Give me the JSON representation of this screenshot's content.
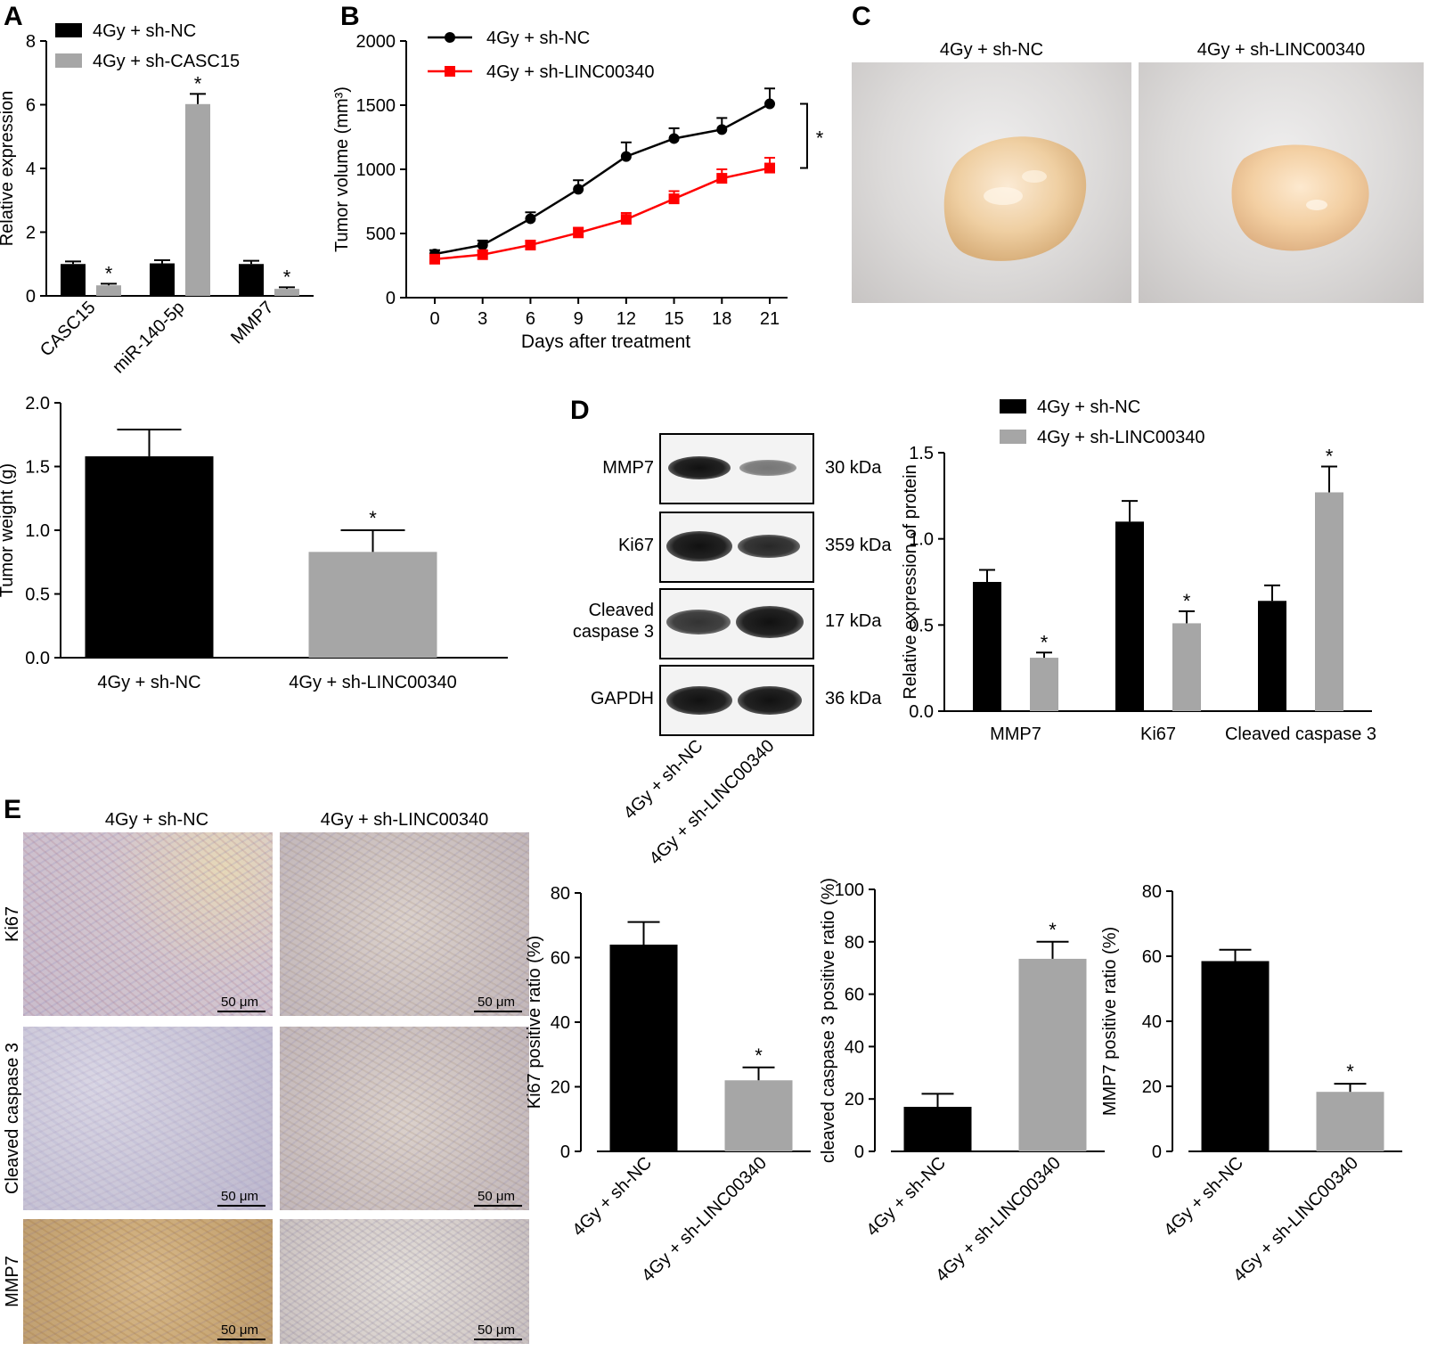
{
  "panel_letters": [
    "A",
    "B",
    "C",
    "D",
    "E"
  ],
  "photos_c": {
    "labels": [
      "4Gy + sh-NC",
      "4Gy + sh-LINC00340"
    ]
  },
  "blot": {
    "proteins": [
      "MMP7",
      "Ki67",
      "Cleaved caspase 3",
      "GAPDH"
    ],
    "protein_lines": [
      [
        "MMP7"
      ],
      [
        "Ki67"
      ],
      [
        "Cleaved",
        "caspase 3"
      ],
      [
        "GAPDH"
      ]
    ],
    "sizes": [
      "30 kDa",
      "359 kDa",
      "17 kDa",
      "36 kDa"
    ],
    "lanes": [
      "4Gy + sh-NC",
      "4Gy + sh-LINC00340"
    ],
    "band_intensity": [
      [
        1.0,
        0.55
      ],
      [
        1.0,
        0.85
      ],
      [
        0.85,
        1.0
      ],
      [
        1.0,
        1.0
      ]
    ]
  },
  "ihc": {
    "columns": [
      "4Gy + sh-NC",
      "4Gy + sh-LINC00340"
    ],
    "rows": [
      "Ki67",
      "Cleaved caspase 3",
      "MMP7"
    ],
    "scale_label": "50 μm"
  },
  "chart_data": [
    {
      "id": "A",
      "type": "bar",
      "categories": [
        "CASC15",
        "miR-140-5p",
        "MMP7"
      ],
      "series": [
        {
          "name": "4Gy + sh-NC",
          "values": [
            1.0,
            1.02,
            1.0
          ],
          "errors": [
            0.08,
            0.1,
            0.1
          ],
          "color": "#000000"
        },
        {
          "name": "4Gy + sh-CASC15",
          "values": [
            0.33,
            6.02,
            0.22
          ],
          "errors": [
            0.05,
            0.32,
            0.05
          ],
          "color": "#a6a6a6"
        }
      ],
      "significance": [
        null,
        "*",
        null,
        "*",
        null,
        "*"
      ],
      "ylabel": "Relative expression",
      "ylim": [
        0,
        8
      ],
      "yticks": [
        0,
        2,
        4,
        6,
        8
      ],
      "legend": "top"
    },
    {
      "id": "B",
      "type": "line",
      "x": [
        0,
        3,
        6,
        9,
        12,
        15,
        18,
        21
      ],
      "series": [
        {
          "name": "4Gy + sh-NC",
          "values": [
            340,
            410,
            615,
            845,
            1100,
            1240,
            1310,
            1510
          ],
          "errors": [
            30,
            35,
            50,
            70,
            110,
            80,
            90,
            120
          ],
          "color": "#000000",
          "marker": "circle"
        },
        {
          "name": "4Gy + sh-LINC00340",
          "values": [
            300,
            335,
            410,
            505,
            610,
            770,
            930,
            1010
          ],
          "errors": [
            25,
            30,
            30,
            40,
            50,
            60,
            70,
            80
          ],
          "color": "#ff0000",
          "marker": "square"
        }
      ],
      "xlabel": "Days after treatment",
      "ylabel": "Tumor volume (mm³)",
      "ylim": [
        0,
        2000
      ],
      "yticks": [
        0,
        500,
        1000,
        1500,
        2000
      ],
      "bracket_label": "*",
      "legend": "top-left"
    },
    {
      "id": "weight",
      "type": "bar",
      "categories": [
        "4Gy + sh-NC",
        "4Gy + sh-LINC00340"
      ],
      "values": [
        1.58,
        0.83
      ],
      "errors": [
        0.21,
        0.17
      ],
      "colors": [
        "#000000",
        "#a6a6a6"
      ],
      "significance": [
        null,
        "*"
      ],
      "ylabel": "Tumor weight (g)",
      "ylim": [
        0,
        2.0
      ],
      "yticks": [
        "0.0",
        "0.5",
        "1.0",
        "1.5",
        "2.0"
      ]
    },
    {
      "id": "D",
      "type": "bar",
      "categories": [
        "MMP7",
        "Ki67",
        "Cleaved caspase 3"
      ],
      "series": [
        {
          "name": "4Gy + sh-NC",
          "values": [
            0.75,
            1.1,
            0.64
          ],
          "errors": [
            0.07,
            0.12,
            0.09
          ],
          "color": "#000000"
        },
        {
          "name": "4Gy + sh-LINC00340",
          "values": [
            0.31,
            0.51,
            1.27
          ],
          "errors": [
            0.03,
            0.07,
            0.15
          ],
          "color": "#a6a6a6"
        }
      ],
      "significance": [
        null,
        "*",
        null,
        "*",
        null,
        "*"
      ],
      "ylabel": "Relative expression of protein",
      "ylim": [
        0,
        1.5
      ],
      "yticks": [
        "0.0",
        "0.5",
        "1.0",
        "1.5"
      ],
      "legend": "top"
    },
    {
      "id": "E1",
      "type": "bar",
      "categories": [
        "4Gy + sh-NC",
        "4Gy + sh-LINC00340"
      ],
      "values": [
        64,
        22
      ],
      "errors": [
        7,
        4
      ],
      "colors": [
        "#000000",
        "#a6a6a6"
      ],
      "significance": [
        null,
        "*"
      ],
      "ylabel": "Ki67 positive ratio (%)",
      "ylim": [
        0,
        80
      ],
      "yticks": [
        0,
        20,
        40,
        60,
        80
      ]
    },
    {
      "id": "E2",
      "type": "bar",
      "categories": [
        "4Gy + sh-NC",
        "4Gy + sh-LINC00340"
      ],
      "values": [
        17,
        73.5
      ],
      "errors": [
        5,
        6.5
      ],
      "colors": [
        "#000000",
        "#a6a6a6"
      ],
      "significance": [
        null,
        "*"
      ],
      "ylabel": "cleaved caspase 3 positive ratio (%)",
      "ylim": [
        0,
        100
      ],
      "yticks": [
        0,
        20,
        40,
        60,
        80,
        100
      ]
    },
    {
      "id": "E3",
      "type": "bar",
      "categories": [
        "4Gy + sh-NC",
        "4Gy + sh-LINC00340"
      ],
      "values": [
        58.5,
        18.3
      ],
      "errors": [
        3.5,
        2.5
      ],
      "colors": [
        "#000000",
        "#a6a6a6"
      ],
      "significance": [
        null,
        "*"
      ],
      "ylabel": "MMP7 positive ratio (%)",
      "ylim": [
        0,
        80
      ],
      "yticks": [
        0,
        20,
        40,
        60,
        80
      ]
    }
  ]
}
